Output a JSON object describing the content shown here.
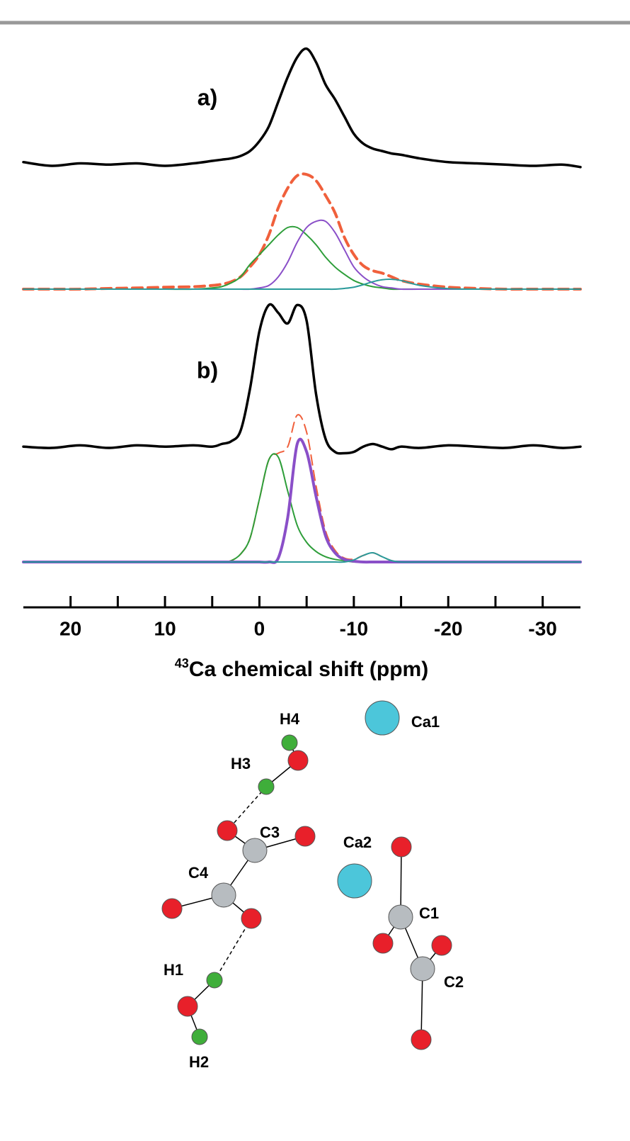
{
  "chart_data": [
    {
      "type": "line",
      "label": "a)",
      "xlim": [
        25,
        -34
      ],
      "ylim": [
        0,
        100
      ],
      "x": [
        25,
        22,
        19,
        16,
        13,
        10,
        7,
        5,
        4,
        3,
        2,
        1,
        0,
        -1,
        -2,
        -3,
        -4,
        -5,
        -6,
        -7,
        -8,
        -9,
        -10,
        -11,
        -12,
        -13,
        -14,
        -15,
        -17,
        -20,
        -23,
        -26,
        -29,
        -32,
        -34
      ],
      "series": [
        {
          "color": "#000000",
          "line_width": 3.5,
          "dash": false,
          "values": [
            51.5,
            50,
            51,
            50.5,
            51,
            50,
            51,
            52,
            52.5,
            53,
            54,
            56,
            60,
            66,
            76,
            86,
            94,
            97.5,
            92,
            83,
            77,
            70,
            63,
            59,
            57,
            56,
            55,
            54.5,
            53,
            51.5,
            51,
            50.5,
            50,
            50.5,
            49.5
          ]
        },
        {
          "color": "#f0603c",
          "line_width": 4,
          "dash": true,
          "values": [
            0,
            0,
            0,
            0.3,
            0.5,
            0.8,
            1,
            1.5,
            2,
            3,
            5,
            9,
            14,
            22,
            33,
            41,
            46,
            46.5,
            44,
            38,
            31,
            21,
            14,
            9.5,
            7.5,
            6.5,
            5,
            3.5,
            2,
            0.8,
            0.3,
            0,
            0,
            0,
            0
          ]
        },
        {
          "color": "#2e9e3a",
          "line_width": 2,
          "dash": false,
          "values": [
            0,
            0,
            0,
            0,
            0,
            0,
            0,
            0.5,
            1,
            2.5,
            5,
            10,
            14,
            18,
            22,
            25,
            25,
            22,
            18,
            13,
            9,
            6,
            3.5,
            2,
            1,
            0.5,
            0,
            0,
            0,
            0,
            0,
            0,
            0,
            0,
            0
          ]
        },
        {
          "color": "#8a4fc8",
          "line_width": 2,
          "dash": false,
          "values": [
            0,
            0,
            0,
            0,
            0,
            0,
            0,
            0,
            0,
            0,
            0,
            0,
            0.5,
            1.5,
            5,
            11,
            19,
            25,
            27.5,
            27.5,
            23,
            16,
            9,
            5,
            2.5,
            1,
            0.5,
            0,
            0,
            0,
            0,
            0,
            0,
            0,
            0
          ]
        },
        {
          "color": "#2a9a9a",
          "line_width": 2,
          "dash": false,
          "values": [
            0,
            0,
            0,
            0,
            0,
            0,
            0,
            0,
            0,
            0,
            0,
            0,
            0,
            0,
            0,
            0,
            0,
            0,
            0,
            0,
            0,
            0.3,
            0.8,
            1.8,
            3,
            3.8,
            4,
            3.5,
            1.5,
            0.2,
            0,
            0,
            0,
            0,
            0
          ]
        }
      ]
    },
    {
      "type": "line",
      "label": "b)",
      "xlim": [
        25,
        -34
      ],
      "ylim": [
        0,
        100
      ],
      "xticks": [
        20,
        10,
        0,
        -10,
        -20,
        -30
      ],
      "xminorticks": [
        15,
        5,
        -5,
        -15,
        -25
      ],
      "xlabel_sup": "43",
      "xlabel": "Ca chemical shift (ppm)",
      "x": [
        25,
        22,
        19,
        16,
        13,
        10,
        7,
        5,
        4,
        3,
        2,
        1,
        0,
        -1,
        -2,
        -3,
        -4,
        -5,
        -6,
        -7,
        -8,
        -9,
        -10,
        -11,
        -12,
        -13,
        -14,
        -15,
        -17,
        -20,
        -23,
        -26,
        -29,
        -32,
        -34
      ],
      "series": [
        {
          "color": "#000000",
          "line_width": 3.5,
          "dash": false,
          "values": [
            44,
            43.5,
            44.5,
            43.5,
            44.5,
            44,
            44.5,
            44,
            45,
            46,
            50,
            66,
            88,
            98,
            95,
            91,
            98,
            92,
            64,
            47,
            42,
            41.5,
            42,
            44,
            45,
            44,
            43,
            44,
            43.5,
            44.5,
            44,
            43.5,
            44.5,
            43.5,
            44
          ]
        },
        {
          "color": "#f0603c",
          "line_width": 2,
          "dash": true,
          "values": [
            0,
            0,
            0,
            0,
            0,
            0,
            0,
            0,
            0,
            0.5,
            3,
            9,
            24,
            39,
            41.5,
            44,
            56,
            49.5,
            29,
            12,
            4.5,
            1.5,
            1.1,
            2.5,
            3.5,
            2,
            0.5,
            0,
            0,
            0,
            0,
            0,
            0,
            0,
            0
          ]
        },
        {
          "color": "#2e9e3a",
          "line_width": 2,
          "dash": false,
          "values": [
            0,
            0,
            0,
            0,
            0,
            0,
            0,
            0,
            0,
            0.5,
            3,
            9,
            24,
            39,
            40,
            27,
            14,
            7.5,
            4,
            2,
            1,
            0.5,
            0,
            0,
            0,
            0,
            0,
            0,
            0,
            0,
            0,
            0,
            0,
            0,
            0
          ]
        },
        {
          "color": "#8a4fc8",
          "line_width": 4,
          "dash": false,
          "values": [
            0,
            0,
            0,
            0,
            0,
            0,
            0,
            0,
            0,
            0,
            0,
            0,
            0,
            0,
            1.5,
            17,
            45,
            42,
            25,
            10,
            3.5,
            1,
            0.3,
            0,
            0,
            0,
            0,
            0,
            0,
            0,
            0,
            0,
            0,
            0,
            0
          ]
        },
        {
          "color": "#2a9a9a",
          "line_width": 2,
          "dash": false,
          "values": [
            0,
            0,
            0,
            0,
            0,
            0,
            0,
            0,
            0,
            0,
            0,
            0,
            0,
            0,
            0,
            0,
            0,
            0,
            0,
            0,
            0,
            0,
            0.8,
            2.5,
            3.5,
            2,
            0.5,
            0,
            0,
            0,
            0,
            0,
            0,
            0,
            0
          ]
        }
      ]
    }
  ],
  "molecule": {
    "atoms": [
      "H4",
      "H3",
      "Ca1",
      "C3",
      "C4",
      "Ca2",
      "C1",
      "C2",
      "H1",
      "H2"
    ]
  }
}
